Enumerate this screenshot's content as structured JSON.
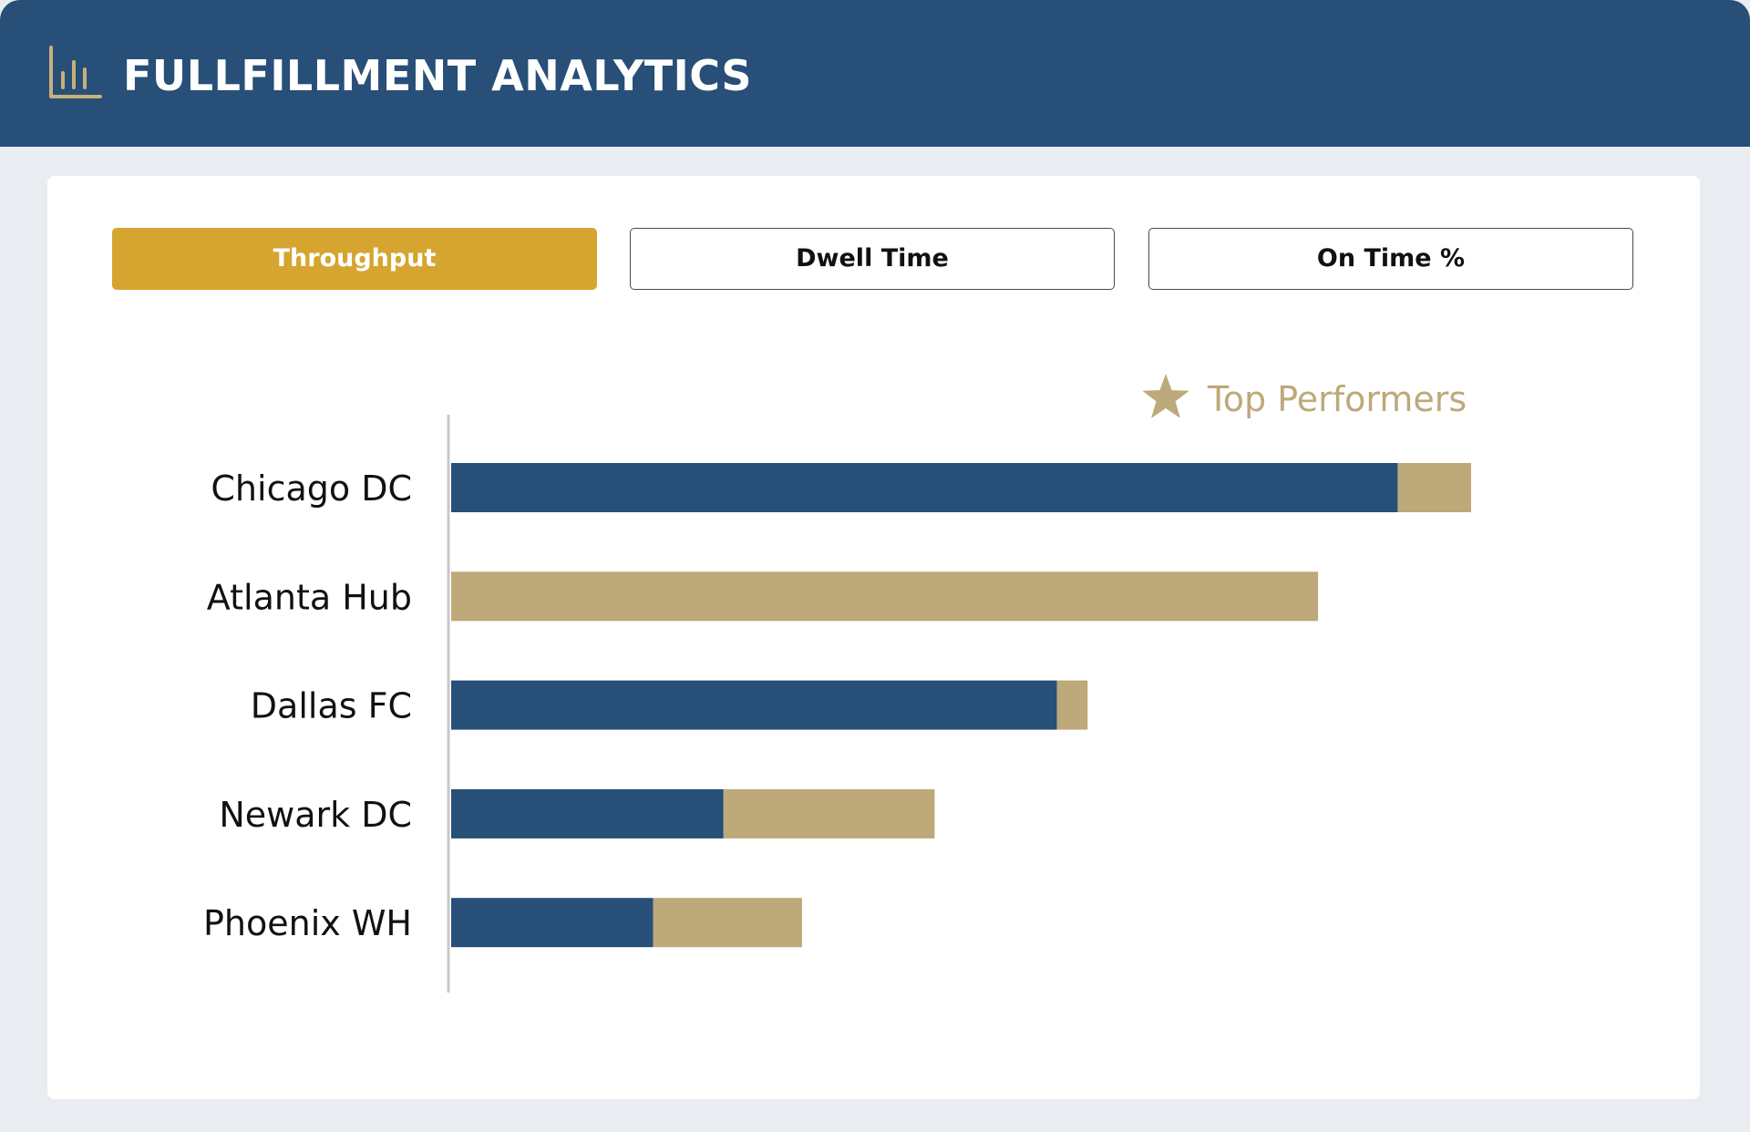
{
  "header": {
    "title": "FULLFILLMENT ANALYTICS",
    "icon": "bar-chart-icon"
  },
  "tabs": [
    {
      "label": "Throughput",
      "active": true
    },
    {
      "label": "Dwell Time",
      "active": false
    },
    {
      "label": "On Time %",
      "active": false
    }
  ],
  "legend": {
    "icon": "star-icon",
    "label": "Top Performers"
  },
  "colors": {
    "header_bg": "#274f77",
    "primary_bar": "#274f77",
    "secondary_bar": "#bda979",
    "active_tab": "#d5a52f",
    "page_bg": "#e9edf1"
  },
  "chart_data": {
    "type": "bar",
    "orientation": "horizontal",
    "stacked": true,
    "categories": [
      "Chicago DC",
      "Atlanta Hub",
      "Dallas FC",
      "Newark DC",
      "Phoenix WH"
    ],
    "series": [
      {
        "values": [
          92.8,
          0,
          59.4,
          26.7,
          19.8
        ]
      },
      {
        "values": [
          7.2,
          85.0,
          3.0,
          20.7,
          14.6
        ]
      }
    ],
    "xlim": [
      0,
      100
    ],
    "grid": false
  }
}
